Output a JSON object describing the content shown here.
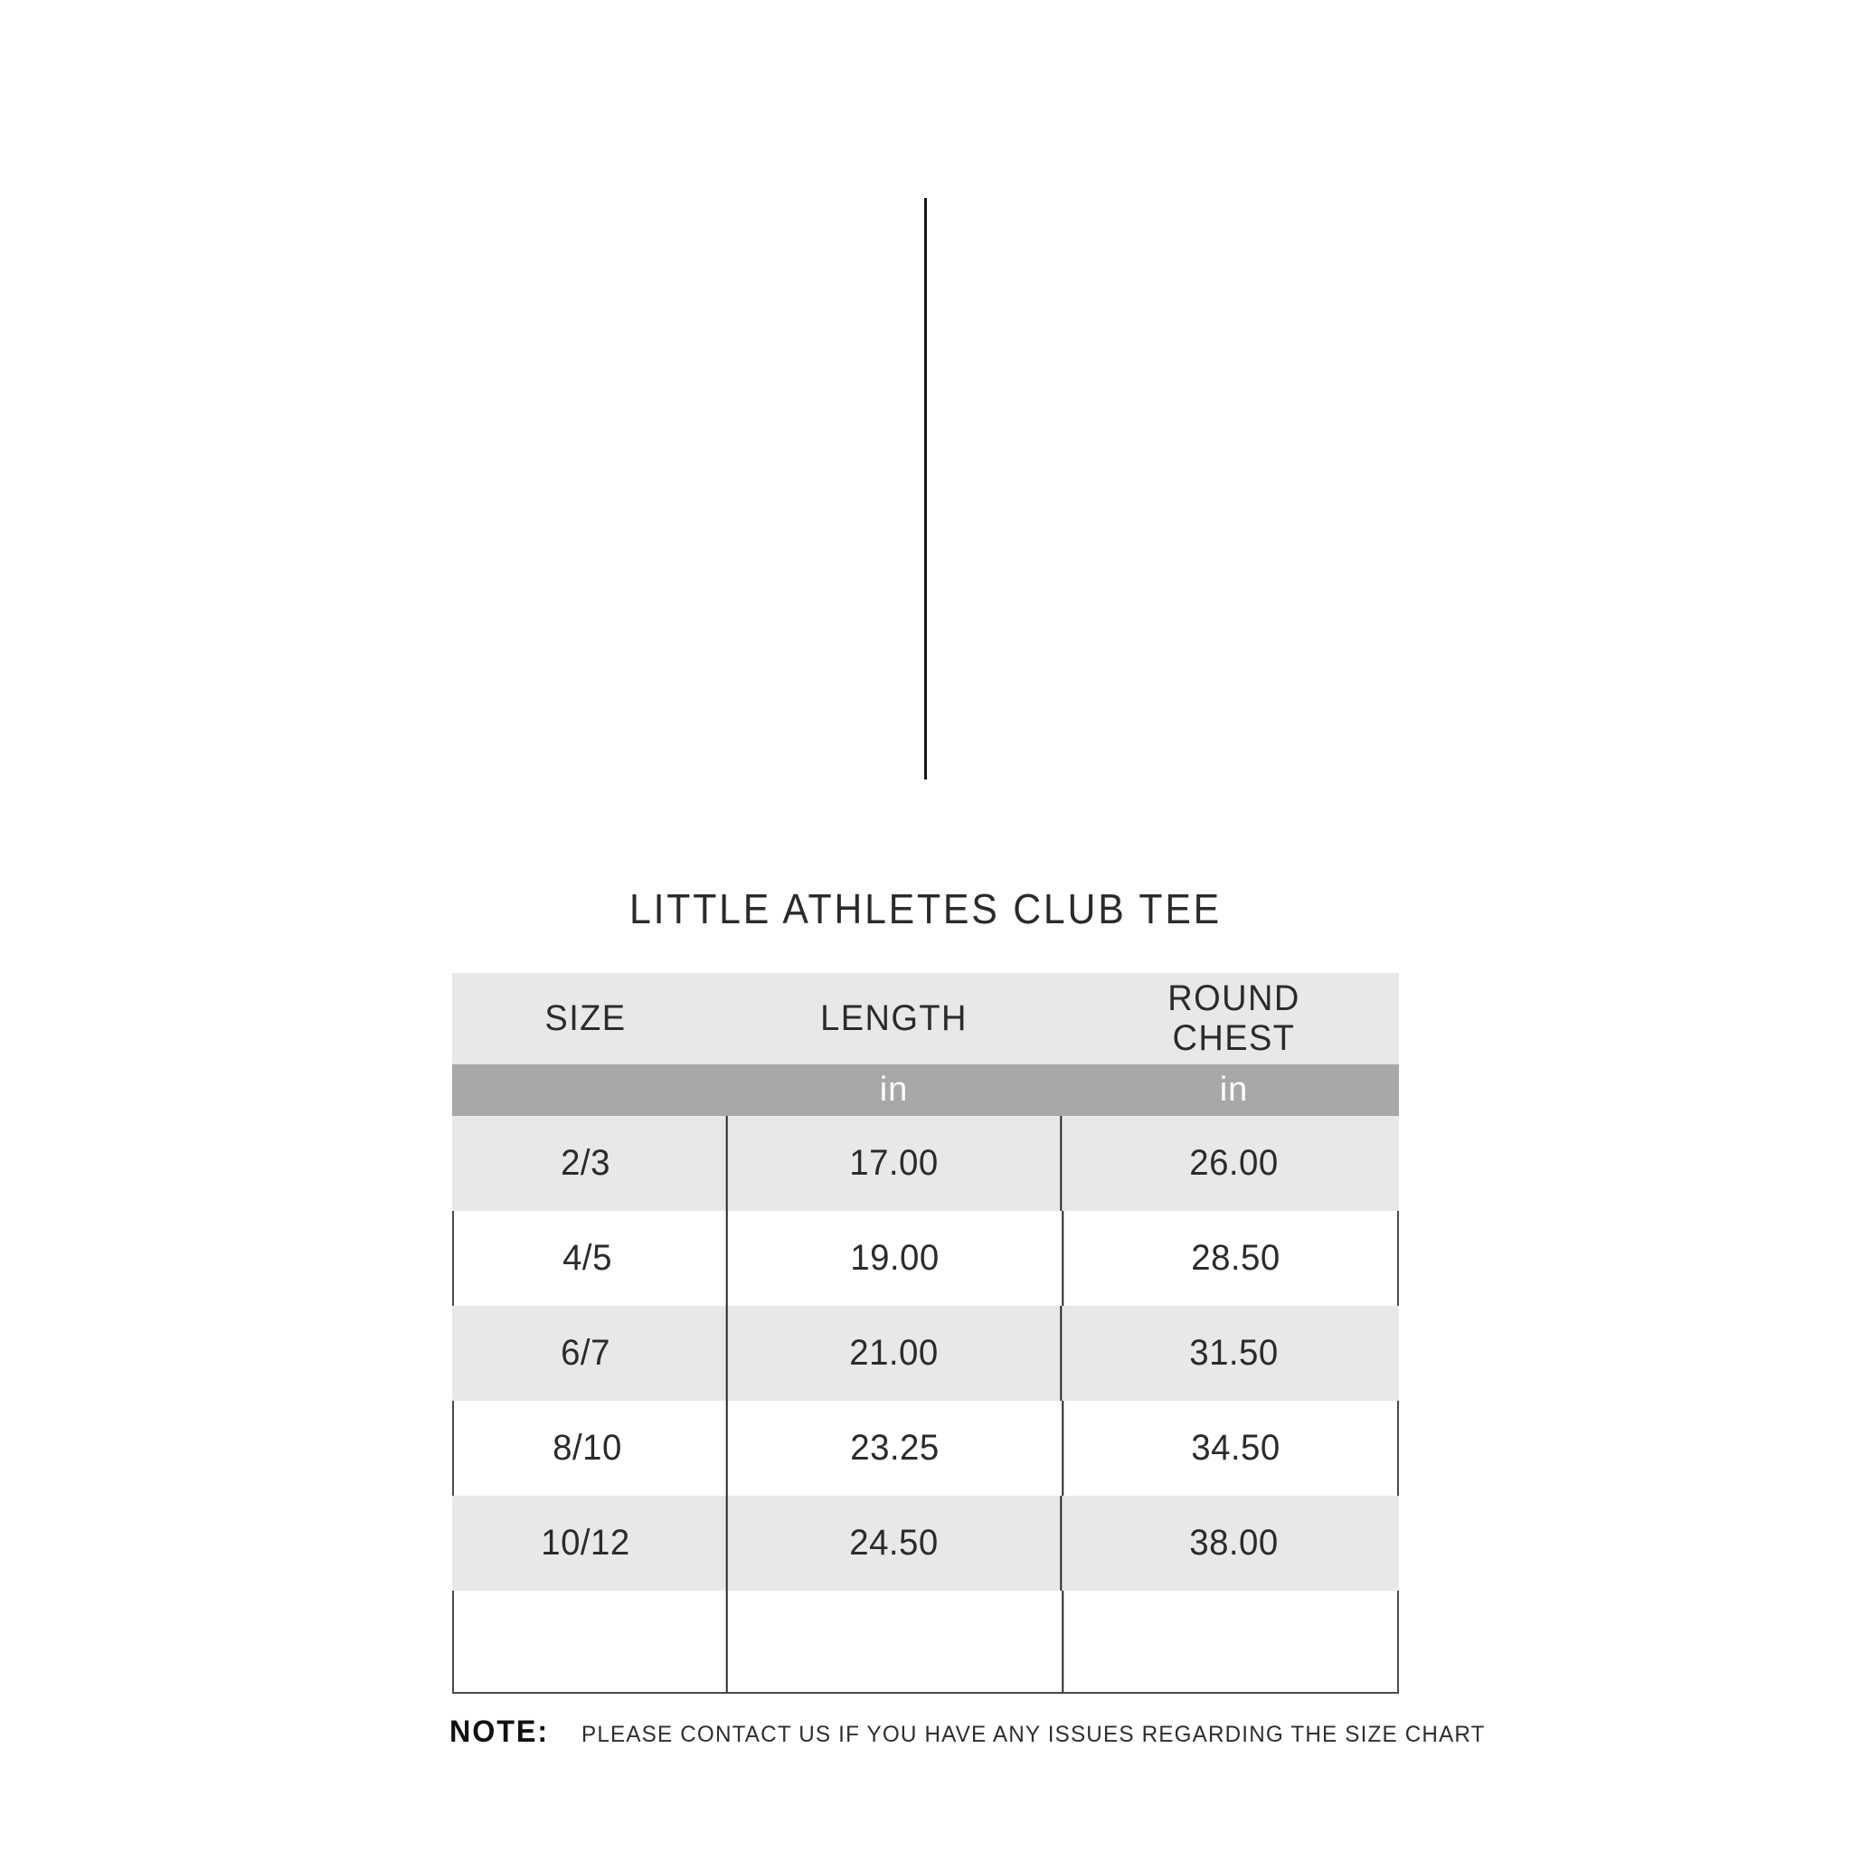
{
  "title": "LITTLE ATHLETES CLUB TEE",
  "size_chart": {
    "columns": {
      "size": "SIZE",
      "length": "LENGTH",
      "round_chest": "ROUND\nCHEST"
    },
    "unit_row": {
      "length_unit": "in",
      "chest_unit": "in"
    },
    "rows": [
      {
        "size": "2/3",
        "length": "17.00",
        "round_chest": "26.00"
      },
      {
        "size": "4/5",
        "length": "19.00",
        "round_chest": "28.50"
      },
      {
        "size": "6/7",
        "length": "21.00",
        "round_chest": "31.50"
      },
      {
        "size": "8/10",
        "length": "23.25",
        "round_chest": "34.50"
      },
      {
        "size": "10/12",
        "length": "24.50",
        "round_chest": "38.00"
      }
    ]
  },
  "note": {
    "label": "NOTE:",
    "text": "PLEASE CONTACT US IF YOU HAVE ANY ISSUES REGARDING THE SIZE CHART"
  },
  "colors": {
    "row_alt": "#e8e8e8",
    "unit_band": "#a8a8a8",
    "text": "#2b2b2b",
    "column_separator": "#222222",
    "outer_border": "#4a4a4a"
  }
}
